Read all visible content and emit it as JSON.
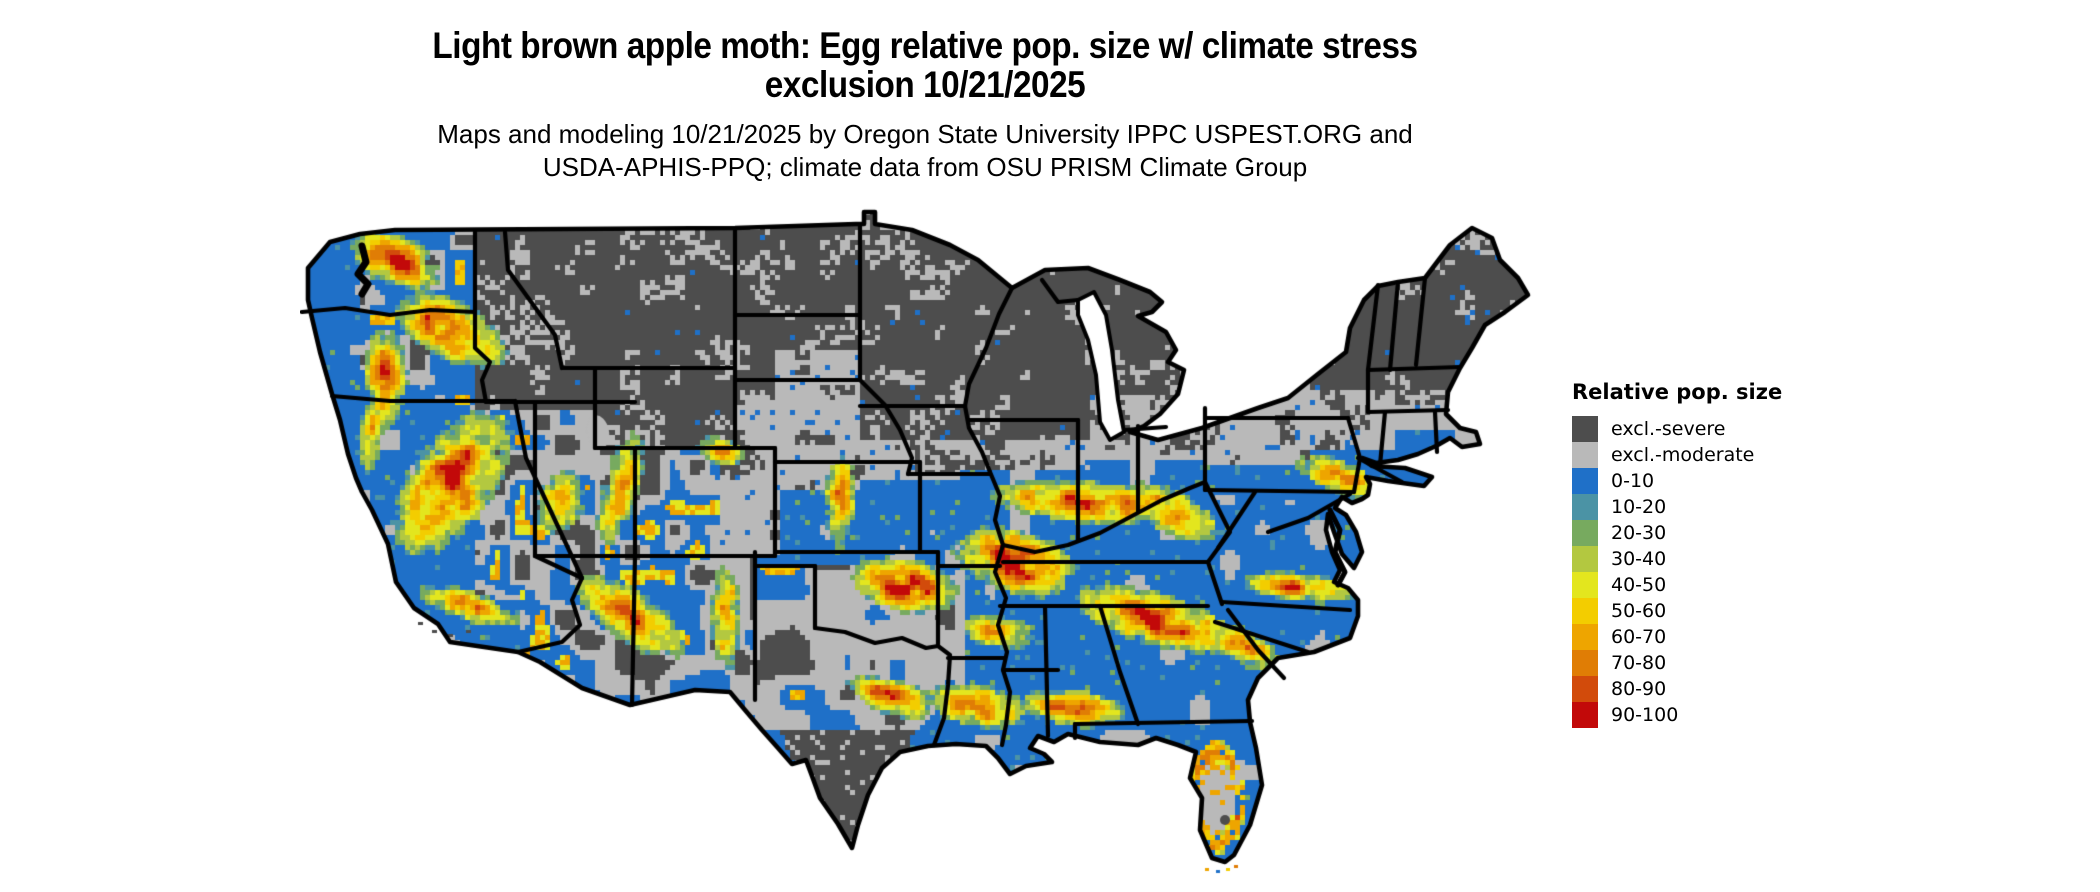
{
  "header": {
    "title_line1": "Light brown apple moth: Egg relative pop. size w/ climate stress",
    "title_line2": "exclusion 10/21/2025",
    "subtitle_line1": "Maps and modeling 10/21/2025 by Oregon State University IPPC USPEST.ORG and",
    "subtitle_line2": "USDA-APHIS-PPQ; climate data from OSU PRISM Climate Group"
  },
  "legend": {
    "title": "Relative pop. size",
    "items": [
      {
        "key": "severe",
        "label": "excl.-severe",
        "color": "#4d4d4d"
      },
      {
        "key": "moderate",
        "label": "excl.-moderate",
        "color": "#b9b9b9"
      },
      {
        "key": "b0",
        "label": "0-10",
        "color": "#1f70c8"
      },
      {
        "key": "b10",
        "label": "10-20",
        "color": "#4b93a5"
      },
      {
        "key": "g20",
        "label": "20-30",
        "color": "#77aa5f"
      },
      {
        "key": "g30",
        "label": "30-40",
        "color": "#b3c840"
      },
      {
        "key": "y40",
        "label": "40-50",
        "color": "#e3e61e"
      },
      {
        "key": "y50",
        "label": "50-60",
        "color": "#f3cd00"
      },
      {
        "key": "o60",
        "label": "60-70",
        "color": "#eea500"
      },
      {
        "key": "o70",
        "label": "70-80",
        "color": "#e07d05"
      },
      {
        "key": "r80",
        "label": "80-90",
        "color": "#d24b0b"
      },
      {
        "key": "r90",
        "label": "90-100",
        "color": "#c20909"
      }
    ]
  },
  "map": {
    "background": "#ffffff",
    "border_color": "#000000"
  },
  "chart_data": {
    "type": "heatmap",
    "title": "Light brown apple moth: Egg relative pop. size w/ climate stress exclusion 10/21/2025",
    "subtitle": "Maps and modeling 10/21/2025 by Oregon State University IPPC USPEST.ORG and USDA-APHIS-PPQ; climate data from OSU PRISM Climate Group",
    "legend_title": "Relative pop. size",
    "categories": [
      "excl.-severe",
      "excl.-moderate",
      "0-10",
      "10-20",
      "20-30",
      "30-40",
      "40-50",
      "50-60",
      "60-70",
      "70-80",
      "80-90",
      "90-100"
    ],
    "colors": [
      "#4d4d4d",
      "#b9b9b9",
      "#1f70c8",
      "#4b93a5",
      "#77aa5f",
      "#b3c840",
      "#e3e61e",
      "#f3cd00",
      "#eea500",
      "#e07d05",
      "#d24b0b",
      "#c20909"
    ],
    "legend_position": "right"
  }
}
